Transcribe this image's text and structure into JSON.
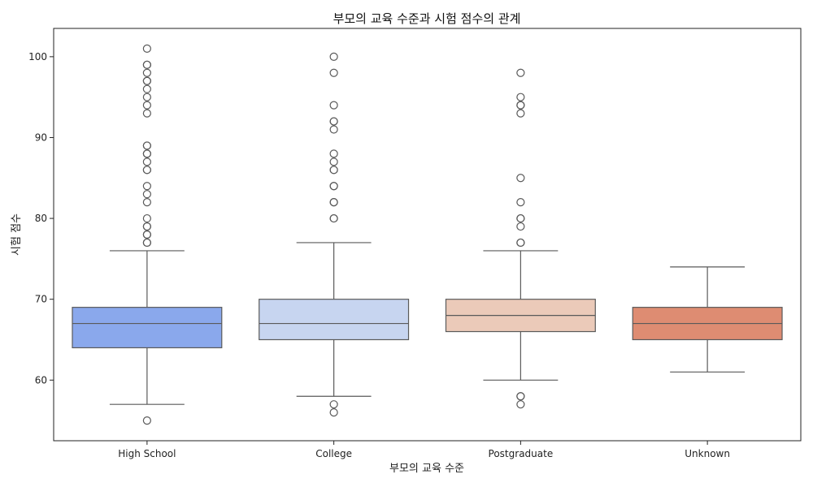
{
  "chart_data": {
    "type": "box",
    "title": "부모의 교육 수준과 시험 점수의 관계",
    "xlabel": "부모의 교육 수준",
    "ylabel": "시험 점수",
    "ylim": [
      52.5,
      103.5
    ],
    "yticks": [
      60,
      70,
      80,
      90,
      100
    ],
    "grid": false,
    "categories": [
      "High School",
      "College",
      "Postgraduate",
      "Unknown"
    ],
    "boxes": [
      {
        "category": "High School",
        "color": "#8aa8ec",
        "whisker_low": 57,
        "q1": 64,
        "median": 67,
        "q3": 69,
        "whisker_high": 76,
        "outliers": [
          55,
          77,
          77,
          78,
          78,
          79,
          79,
          80,
          82,
          83,
          84,
          86,
          86,
          87,
          88,
          88,
          89,
          89,
          93,
          94,
          95,
          96,
          97,
          97,
          98,
          99,
          99,
          101
        ]
      },
      {
        "category": "College",
        "color": "#c7d5f0",
        "whisker_low": 58,
        "q1": 65,
        "median": 67,
        "q3": 70,
        "whisker_high": 77,
        "outliers": [
          56,
          57,
          80,
          80,
          82,
          82,
          84,
          84,
          86,
          86,
          87,
          88,
          91,
          92,
          92,
          94,
          98,
          100
        ]
      },
      {
        "category": "Postgraduate",
        "color": "#ebcab9",
        "whisker_low": 60,
        "q1": 66,
        "median": 68,
        "q3": 70,
        "whisker_high": 76,
        "outliers": [
          57,
          58,
          58,
          77,
          77,
          79,
          80,
          80,
          82,
          85,
          93,
          94,
          94,
          95,
          98
        ]
      },
      {
        "category": "Unknown",
        "color": "#de8c72",
        "whisker_low": 61,
        "q1": 65,
        "median": 67,
        "q3": 69,
        "whisker_high": 74,
        "outliers": []
      }
    ],
    "line_color": "#5a5a5a"
  }
}
